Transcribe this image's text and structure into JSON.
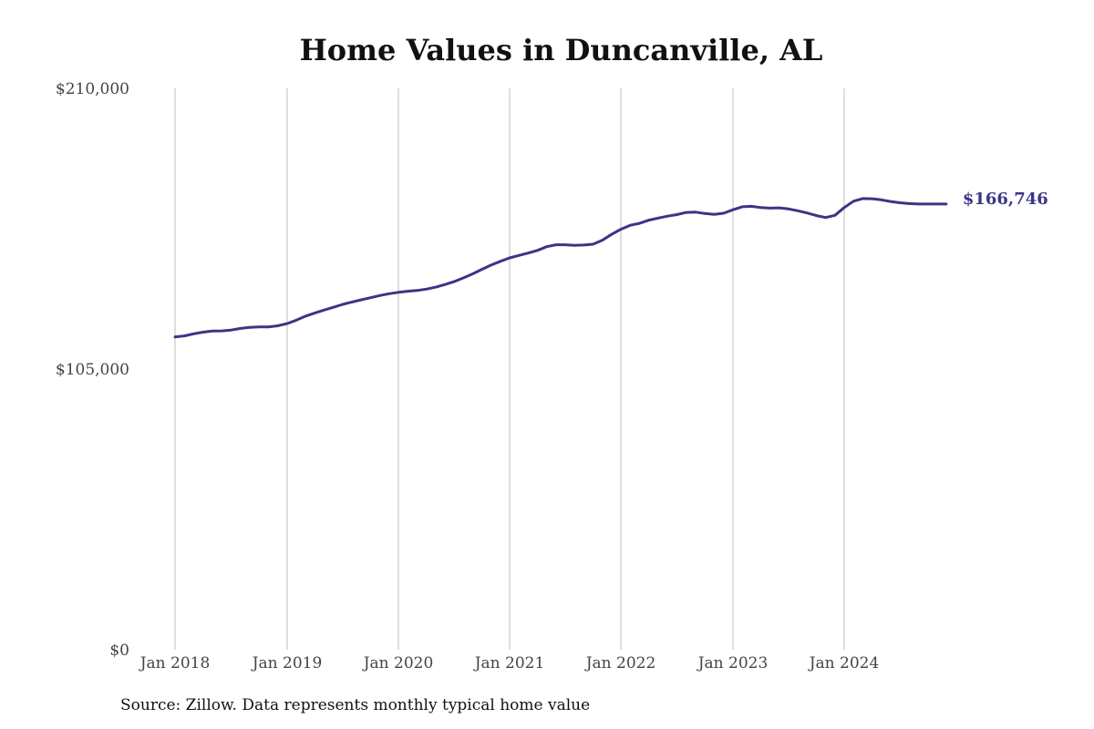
{
  "chart_data": {
    "type": "line",
    "title": "Home Values in Duncanville, AL",
    "source": "Source: Zillow. Data represents monthly typical home value",
    "xlabel": "",
    "ylabel": "",
    "ylim": [
      0,
      210000
    ],
    "yticks": [
      {
        "value": 0,
        "label": "$0"
      },
      {
        "value": 105000,
        "label": "$105,000"
      },
      {
        "value": 210000,
        "label": "$210,000"
      }
    ],
    "xticks": [
      "Jan 2018",
      "Jan 2019",
      "Jan 2020",
      "Jan 2021",
      "Jan 2022",
      "Jan 2023",
      "Jan 2024"
    ],
    "grid": "vertical",
    "line_color": "#3a3585",
    "end_label": "$166,746",
    "series": [
      {
        "x": [
          "2018-01",
          "2018-02",
          "2018-03",
          "2018-04",
          "2018-05",
          "2018-06",
          "2018-07",
          "2018-08",
          "2018-09",
          "2018-10",
          "2018-11",
          "2018-12",
          "2019-01",
          "2019-02",
          "2019-03",
          "2019-04",
          "2019-05",
          "2019-06",
          "2019-07",
          "2019-08",
          "2019-09",
          "2019-10",
          "2019-11",
          "2019-12",
          "2020-01",
          "2020-02",
          "2020-03",
          "2020-04",
          "2020-05",
          "2020-06",
          "2020-07",
          "2020-08",
          "2020-09",
          "2020-10",
          "2020-11",
          "2020-12",
          "2021-01",
          "2021-02",
          "2021-03",
          "2021-04",
          "2021-05",
          "2021-06",
          "2021-07",
          "2021-08",
          "2021-09",
          "2021-10",
          "2021-11",
          "2021-12",
          "2022-01",
          "2022-02",
          "2022-03",
          "2022-04",
          "2022-05",
          "2022-06",
          "2022-07",
          "2022-08",
          "2022-09",
          "2022-10",
          "2022-11",
          "2022-12",
          "2023-01",
          "2023-02",
          "2023-03",
          "2023-04",
          "2023-05",
          "2023-06",
          "2023-07",
          "2023-08",
          "2023-09",
          "2023-10",
          "2023-11",
          "2023-12",
          "2024-01",
          "2024-02",
          "2024-03",
          "2024-04",
          "2024-05",
          "2024-06",
          "2024-07",
          "2024-08",
          "2024-09",
          "2024-10",
          "2024-11",
          "2024-12"
        ],
        "values": [
          117000,
          117400,
          118200,
          118800,
          119200,
          119300,
          119600,
          120200,
          120600,
          120800,
          120800,
          121200,
          122000,
          123300,
          124800,
          126000,
          127100,
          128100,
          129200,
          130100,
          130900,
          131700,
          132500,
          133200,
          133700,
          134100,
          134400,
          134900,
          135600,
          136600,
          137700,
          139100,
          140600,
          142300,
          143900,
          145300,
          146600,
          147500,
          148400,
          149400,
          150800,
          151500,
          151500,
          151300,
          151400,
          151700,
          153200,
          155400,
          157300,
          158800,
          159500,
          160700,
          161500,
          162200,
          162800,
          163600,
          163700,
          163200,
          162900,
          163300,
          164600,
          165700,
          165900,
          165400,
          165200,
          165300,
          164900,
          164200,
          163400,
          162400,
          161700,
          162500,
          165400,
          167800,
          168800,
          168700,
          168300,
          167700,
          167200,
          166900,
          166746,
          166746,
          166746,
          166746
        ]
      }
    ]
  }
}
